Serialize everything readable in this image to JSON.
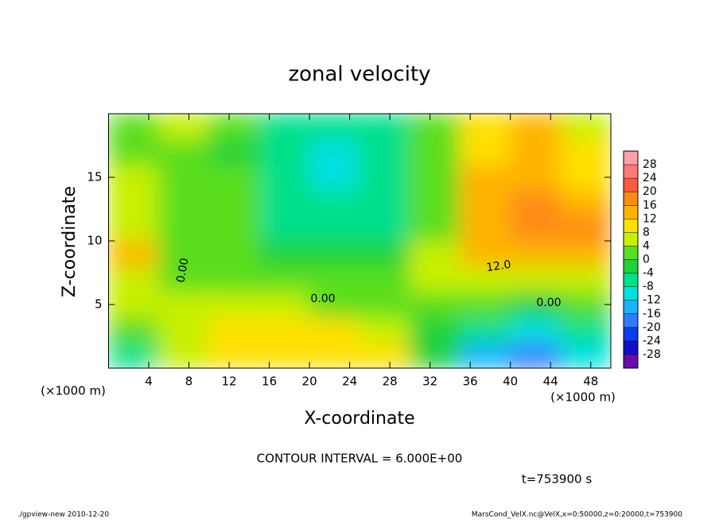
{
  "chart_data": {
    "type": "heatmap",
    "title": "zonal velocity",
    "x_label": "X-coordinate",
    "y_label": "Z-coordinate",
    "x_unit": "(×1000 m)",
    "y_unit": "(×1000 m)",
    "x": [
      2.5,
      7.5,
      12.5,
      17.5,
      22.5,
      27.5,
      32.5,
      37.5,
      42.5,
      47.5
    ],
    "y": [
      1,
      3,
      5,
      7,
      9,
      11,
      13,
      15,
      17,
      19
    ],
    "z": [
      [
        -8,
        4,
        8,
        10,
        10,
        8,
        -2,
        -16,
        -18,
        -12
      ],
      [
        2,
        6,
        8,
        10,
        8,
        6,
        -1,
        -8,
        -10,
        -8
      ],
      [
        4,
        4,
        4,
        4,
        2,
        2,
        2,
        0,
        -2,
        0
      ],
      [
        4,
        2,
        2,
        0,
        0,
        2,
        6,
        6,
        6,
        6
      ],
      [
        12,
        2,
        0,
        -2,
        -4,
        -2,
        4,
        12,
        14,
        12
      ],
      [
        6,
        2,
        0,
        -6,
        -8,
        -6,
        2,
        14,
        16,
        16
      ],
      [
        4,
        2,
        0,
        -6,
        -8,
        -8,
        2,
        12,
        16,
        14
      ],
      [
        4,
        2,
        0,
        -8,
        -10,
        -8,
        0,
        12,
        14,
        10
      ],
      [
        2,
        2,
        -2,
        -8,
        -12,
        -8,
        0,
        10,
        14,
        8
      ],
      [
        2,
        4,
        0,
        -6,
        -8,
        -6,
        0,
        10,
        12,
        4
      ]
    ],
    "xlim": [
      0,
      50
    ],
    "ylim": [
      0,
      20
    ],
    "xticks": [
      4,
      8,
      12,
      16,
      20,
      24,
      28,
      32,
      36,
      40,
      44,
      48
    ],
    "yticks": [
      5,
      10,
      15
    ],
    "levels": [
      -28,
      -24,
      -20,
      -16,
      -12,
      -8,
      -4,
      0,
      4,
      8,
      12,
      16,
      20,
      24,
      28
    ],
    "colors": [
      "#6a0aa8",
      "#1010c8",
      "#0a3cf0",
      "#2f7cff",
      "#18b4ff",
      "#00e0e0",
      "#00e08a",
      "#1ed23a",
      "#5ade1e",
      "#c8f000",
      "#ffe000",
      "#ffb400",
      "#ff8a14",
      "#ff5a3c",
      "#ff7878",
      "#ffa0a8"
    ],
    "annotations": [
      "0.00",
      "0.00",
      "12.0",
      "0.00"
    ],
    "contour_interval": "CONTOUR INTERVAL = 6.000E+00",
    "time": "t=753900 s",
    "footer_left": "./gpview-new  2010-12-20",
    "footer_right": "MarsCond_VelX.nc@VelX,x=0:50000,z=0:20000,t=753900"
  }
}
